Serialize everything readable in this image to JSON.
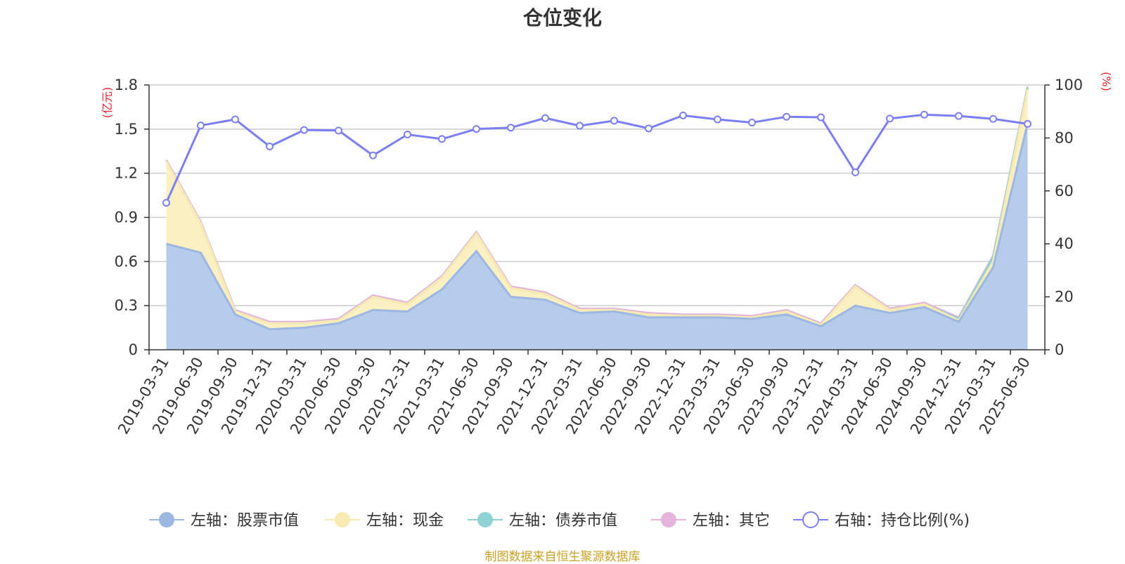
{
  "title": "仓位变化",
  "source": "制图数据来自恒生聚源数据库",
  "colors": {
    "stock": "#9bb7e2",
    "stock_fill": "#b7cceb",
    "cash": "#f8eab0",
    "cash_fill": "#fbf0c2",
    "bond": "#8fd3d4",
    "other": "#e4b4dc",
    "ratio": "#7b7ff2",
    "grid": "#cccccc",
    "unit": "#e8222a"
  },
  "chart_data": {
    "type": "area",
    "title": "仓位变化",
    "x": [
      "2019-03-31",
      "2019-06-30",
      "2019-09-30",
      "2019-12-31",
      "2020-03-31",
      "2020-06-30",
      "2020-09-30",
      "2020-12-31",
      "2021-03-31",
      "2021-06-30",
      "2021-09-30",
      "2021-12-31",
      "2022-03-31",
      "2022-06-30",
      "2022-09-30",
      "2022-12-31",
      "2023-03-31",
      "2023-06-30",
      "2023-09-30",
      "2023-12-31",
      "2024-03-31",
      "2024-06-30",
      "2024-09-30",
      "2024-12-31",
      "2025-03-31",
      "2025-06-30"
    ],
    "left_axis": {
      "unit": "(亿元)",
      "ylim": [
        0,
        1.8
      ],
      "ticks": [
        "0",
        "0.3",
        "0.6",
        "0.9",
        "1.2",
        "1.5",
        "1.8"
      ]
    },
    "right_axis": {
      "unit": "(%)",
      "ylim": [
        0,
        100
      ],
      "ticks": [
        "0",
        "20",
        "40",
        "60",
        "80",
        "100"
      ]
    },
    "grid": true,
    "legend_position": "bottom",
    "series": [
      {
        "name": "左轴：股票市值",
        "axis": "left",
        "stacked": true,
        "values": [
          0.72,
          0.66,
          0.24,
          0.14,
          0.15,
          0.18,
          0.27,
          0.26,
          0.41,
          0.67,
          0.36,
          0.34,
          0.25,
          0.26,
          0.22,
          0.22,
          0.22,
          0.21,
          0.24,
          0.16,
          0.3,
          0.25,
          0.29,
          0.19,
          0.56,
          1.54
        ]
      },
      {
        "name": "左轴：现金",
        "axis": "left",
        "stacked": true,
        "values": [
          0.56,
          0.2,
          0.02,
          0.04,
          0.03,
          0.02,
          0.09,
          0.05,
          0.08,
          0.12,
          0.06,
          0.04,
          0.02,
          0.01,
          0.02,
          0.01,
          0.01,
          0.01,
          0.02,
          0.01,
          0.13,
          0.02,
          0.02,
          0.01,
          0.04,
          0.23
        ]
      },
      {
        "name": "左轴：债券市值",
        "axis": "left",
        "stacked": true,
        "values": [
          0,
          0,
          0,
          0,
          0,
          0,
          0,
          0,
          0,
          0,
          0,
          0,
          0,
          0,
          0,
          0,
          0,
          0,
          0,
          0,
          0,
          0,
          0,
          0.01,
          0.03,
          0.01
        ]
      },
      {
        "name": "左轴：其它",
        "axis": "left",
        "stacked": true,
        "values": [
          0.01,
          0.01,
          0.01,
          0.01,
          0.01,
          0.01,
          0.01,
          0.01,
          0.01,
          0.01,
          0.01,
          0.01,
          0.01,
          0.01,
          0.01,
          0.01,
          0.01,
          0.01,
          0.01,
          0.01,
          0.01,
          0.01,
          0.01,
          0.01,
          0.01,
          0.01
        ]
      },
      {
        "name": "右轴：持仓比例(%)",
        "axis": "right",
        "type": "line",
        "values": [
          55.5,
          84.7,
          87.0,
          76.8,
          83.0,
          82.8,
          73.4,
          81.3,
          79.6,
          83.4,
          83.9,
          87.5,
          84.6,
          86.5,
          83.6,
          88.5,
          87.0,
          85.8,
          88.0,
          87.8,
          67.0,
          87.3,
          88.8,
          88.3,
          87.2,
          85.3
        ]
      }
    ]
  }
}
